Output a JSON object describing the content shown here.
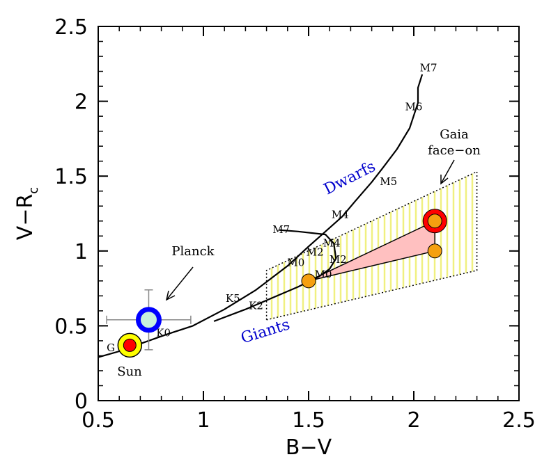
{
  "chart_data": {
    "type": "scatter",
    "xlabel": "B−V",
    "ylabel_main": "V−R",
    "ylabel_sub": "c",
    "xlim": [
      0.5,
      2.5
    ],
    "ylim": [
      0,
      2.5
    ],
    "x_ticks": [
      "0.5",
      "1",
      "1.5",
      "2",
      "2.5"
    ],
    "y_ticks": [
      "0",
      "0.5",
      "1",
      "1.5",
      "2",
      "2.5"
    ],
    "x_tick_values": [
      0.5,
      1,
      1.5,
      2,
      2.5
    ],
    "y_tick_values": [
      0,
      0.5,
      1,
      1.5,
      2,
      2.5
    ],
    "dwarfs_curve": [
      [
        0.5,
        0.29
      ],
      [
        0.6,
        0.33
      ],
      [
        0.7,
        0.38
      ],
      [
        0.82,
        0.44
      ],
      [
        0.95,
        0.5
      ],
      [
        1.1,
        0.61
      ],
      [
        1.25,
        0.74
      ],
      [
        1.4,
        0.9
      ],
      [
        1.5,
        1.03
      ],
      [
        1.58,
        1.13
      ],
      [
        1.66,
        1.23
      ],
      [
        1.72,
        1.33
      ],
      [
        1.8,
        1.46
      ],
      [
        1.85,
        1.55
      ],
      [
        1.92,
        1.68
      ],
      [
        1.98,
        1.82
      ],
      [
        2.02,
        1.99
      ],
      [
        2.02,
        2.09
      ],
      [
        2.04,
        2.18
      ]
    ],
    "giants_curve": [
      [
        1.05,
        0.53
      ],
      [
        1.2,
        0.61
      ],
      [
        1.3,
        0.67
      ],
      [
        1.45,
        0.76
      ],
      [
        1.55,
        0.83
      ],
      [
        1.6,
        0.88
      ],
      [
        1.63,
        0.95
      ],
      [
        1.62,
        1.05
      ],
      [
        1.58,
        1.11
      ],
      [
        1.45,
        1.13
      ],
      [
        1.36,
        1.14
      ]
    ],
    "dwarf_labels": [
      {
        "text": "G",
        "x": 0.56,
        "y": 0.33
      },
      {
        "text": "K0",
        "x": 0.81,
        "y": 0.43
      },
      {
        "text": "K5",
        "x": 1.14,
        "y": 0.66
      },
      {
        "text": "M0",
        "x": 1.44,
        "y": 0.9
      },
      {
        "text": "M2",
        "x": 1.53,
        "y": 0.97
      },
      {
        "text": "M4",
        "x": 1.65,
        "y": 1.22
      },
      {
        "text": "M5",
        "x": 1.88,
        "y": 1.44
      },
      {
        "text": "M6",
        "x": 2.0,
        "y": 1.94
      },
      {
        "text": "M7",
        "x": 2.07,
        "y": 2.2
      }
    ],
    "giant_labels": [
      {
        "text": "K2",
        "x": 1.25,
        "y": 0.61
      },
      {
        "text": "M0",
        "x": 1.57,
        "y": 0.82
      },
      {
        "text": "M2",
        "x": 1.64,
        "y": 0.92
      },
      {
        "text": "M4",
        "x": 1.61,
        "y": 1.03
      },
      {
        "text": "M7",
        "x": 1.37,
        "y": 1.12
      }
    ],
    "sun": {
      "label": "Sun",
      "x": 0.65,
      "y": 0.37
    },
    "planck": {
      "label": "Planck",
      "x": 0.74,
      "y": 0.54,
      "xerr": 0.2,
      "yerr": 0.2
    },
    "gaia_label_line1": "Gaia",
    "gaia_label_line2": "face−on",
    "gaia_points": [
      {
        "x": 1.5,
        "y": 0.8
      },
      {
        "x": 2.1,
        "y": 1.0
      },
      {
        "x": 2.1,
        "y": 1.2
      }
    ],
    "gaia_region": [
      [
        1.3,
        0.54
      ],
      [
        2.3,
        0.87
      ],
      [
        2.3,
        1.53
      ],
      [
        1.3,
        0.87
      ]
    ],
    "region_labels": {
      "dwarfs": "Dwarfs",
      "giants": "Giants"
    },
    "colors": {
      "axis": "#000000",
      "curve": "#000000",
      "sun_outer": "#ffff00",
      "sun_inner": "#ff0000",
      "planck_outer": "#0000ff",
      "planck_inner": "#c8f0dc",
      "gaia_point": "#f5a010",
      "gaia_ring": "#ff0000",
      "gaia_triangle": "#ffc0c0",
      "region_hatch": "#f0f080",
      "region_label": "#0000cc",
      "errorbar": "#888888"
    }
  }
}
